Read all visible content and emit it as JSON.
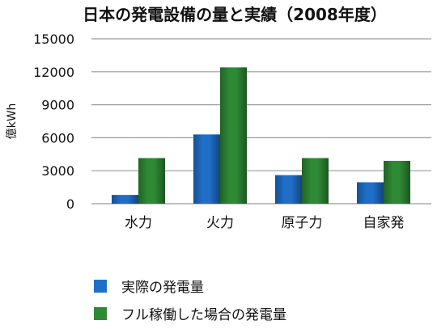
{
  "chart_data": {
    "type": "bar",
    "title": "日本の発電設備の量と実績（2008年度）",
    "xlabel": "",
    "ylabel": "億kWh",
    "ylim": [
      0,
      15000
    ],
    "yticks": [
      "15000",
      "12000",
      "9000",
      "6000",
      "3000",
      "0"
    ],
    "grid": true,
    "legend_position": "bottom-left",
    "categories": [
      "水力",
      "火力",
      "原子力",
      "自家発"
    ],
    "series": [
      {
        "name": "実際の発電量",
        "color": "#1f6fc9",
        "values": [
          800,
          6300,
          2600,
          1950
        ]
      },
      {
        "name": "フル稼働した場合の発電量",
        "color": "#2e8a35",
        "values": [
          4150,
          12400,
          4150,
          3900
        ]
      }
    ]
  }
}
